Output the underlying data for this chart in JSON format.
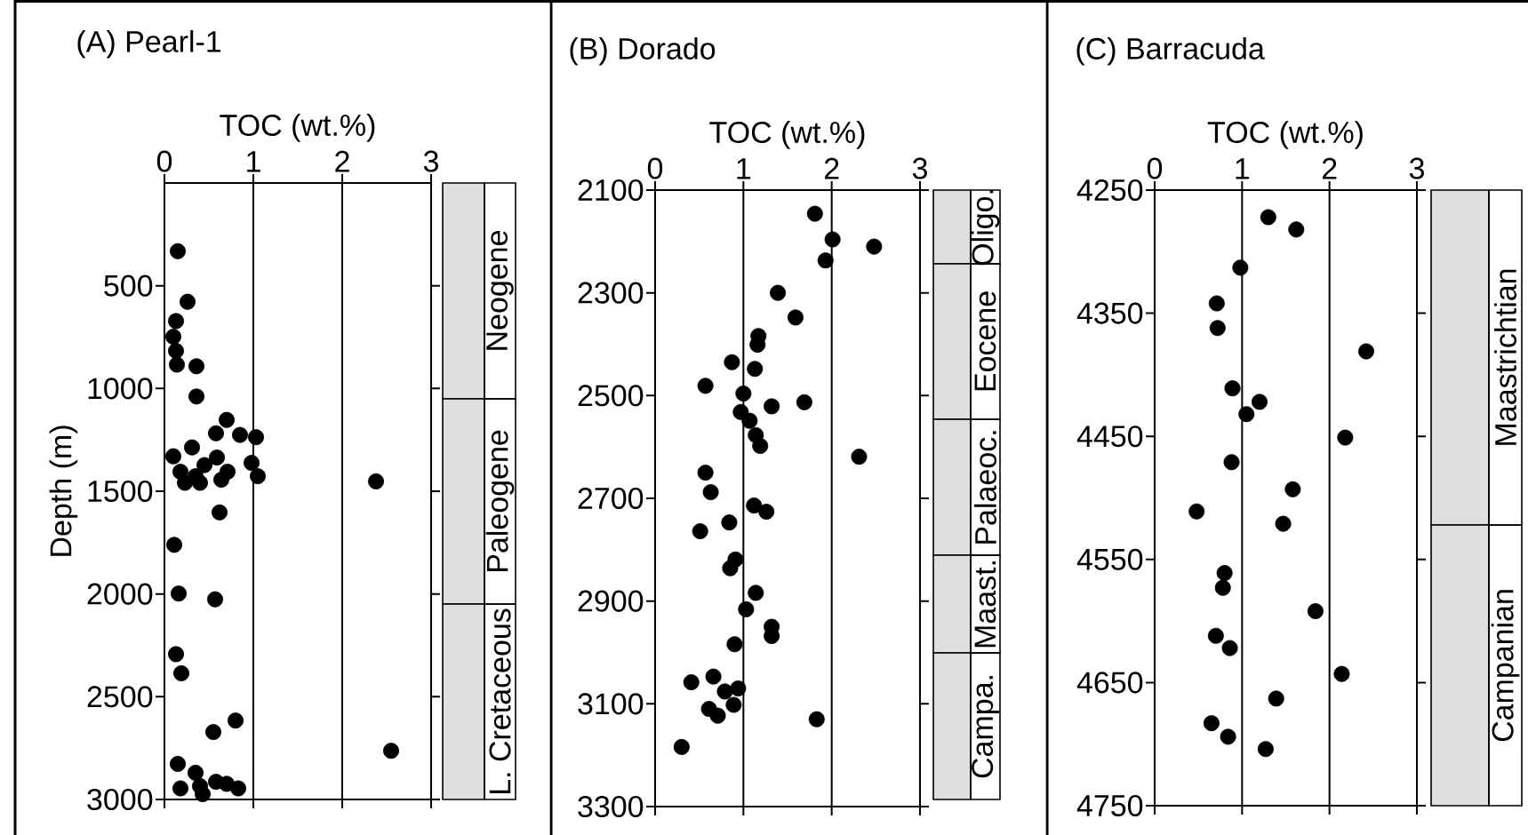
{
  "chart_data": [
    {
      "type": "scatter",
      "title": "(A) Pearl-1",
      "xlabel": "TOC (wt.%)",
      "ylabel": "Depth (m)",
      "xlim": [
        0,
        3
      ],
      "xticks": [
        0,
        1,
        2,
        3
      ],
      "ylim": [
        3000,
        0
      ],
      "yticks": [
        500,
        1000,
        1500,
        2000,
        2500,
        3000
      ],
      "grid": "x",
      "series": [
        {
          "color": "#000000",
          "x": [
            0.15,
            0.26,
            0.13,
            0.1,
            0.13,
            0.14,
            0.36,
            0.36,
            0.7,
            0.58,
            0.85,
            1.03,
            0.31,
            0.1,
            0.59,
            0.98,
            0.45,
            0.18,
            0.35,
            0.71,
            1.05,
            0.23,
            0.4,
            0.64,
            2.38,
            0.62,
            0.11,
            0.16,
            0.57,
            0.13,
            0.19,
            0.8,
            0.55,
            2.55,
            0.15,
            0.35,
            0.18,
            0.4,
            0.58,
            0.7,
            0.83,
            0.43
          ],
          "values": [
            332,
            578,
            672,
            748,
            817,
            884,
            892,
            1039,
            1153,
            1218,
            1226,
            1237,
            1287,
            1330,
            1336,
            1362,
            1373,
            1405,
            1427,
            1405,
            1427,
            1459,
            1459,
            1444,
            1452,
            1603,
            1761,
            1998,
            2026,
            2293,
            2386,
            2616,
            2672,
            2763,
            2827,
            2870,
            2946,
            2935,
            2914,
            2924,
            2946,
            2974
          ]
        }
      ],
      "annotations": [
        "Neogene",
        "Paleogene",
        "L. Cretaceous"
      ]
    },
    {
      "type": "scatter",
      "title": "(B) Dorado",
      "xlabel": "TOC (wt.%)",
      "xlim": [
        0,
        3
      ],
      "xticks": [
        0,
        1,
        2,
        3
      ],
      "ylim": [
        3300,
        2100
      ],
      "yticks": [
        2100,
        2300,
        2500,
        2700,
        2900,
        3100,
        3300
      ],
      "grid": "x",
      "series": [
        {
          "color": "#000000",
          "x": [
            1.81,
            2.01,
            2.48,
            1.93,
            1.39,
            1.59,
            1.17,
            1.16,
            0.87,
            1.13,
            0.57,
            1.0,
            1.32,
            1.69,
            0.97,
            1.07,
            1.14,
            1.19,
            2.31,
            0.57,
            0.63,
            1.12,
            1.26,
            0.84,
            0.51,
            0.91,
            0.85,
            1.14,
            1.03,
            1.32,
            1.32,
            0.9,
            0.66,
            0.41,
            0.94,
            0.79,
            0.89,
            0.61,
            0.71,
            1.83,
            0.3
          ],
          "values": [
            2146,
            2196,
            2210,
            2237,
            2300,
            2348,
            2384,
            2401,
            2435,
            2448,
            2481,
            2496,
            2521,
            2513,
            2532,
            2549,
            2577,
            2598,
            2619,
            2650,
            2688,
            2714,
            2726,
            2747,
            2764,
            2819,
            2836,
            2884,
            2916,
            2950,
            2968,
            2984,
            3047,
            3058,
            3070,
            3076,
            3102,
            3110,
            3123,
            3130,
            3184
          ]
        }
      ],
      "annotations": [
        "Oligo.",
        "Eocene",
        "Palaeoc.",
        "Maast.",
        "Campa."
      ]
    },
    {
      "type": "scatter",
      "title": "(C) Barracuda",
      "xlabel": "TOC (wt.%)",
      "xlim": [
        0,
        3
      ],
      "xticks": [
        0,
        1,
        2,
        3
      ],
      "ylim": [
        4750,
        4250
      ],
      "yticks": [
        4250,
        4350,
        4450,
        4550,
        4650,
        4750
      ],
      "grid": "x",
      "series": [
        {
          "color": "#000000",
          "x": [
            1.3,
            1.62,
            0.98,
            0.71,
            0.72,
            2.42,
            0.89,
            1.2,
            1.05,
            2.18,
            0.88,
            1.58,
            0.48,
            1.47,
            0.8,
            0.78,
            1.84,
            0.7,
            0.86,
            2.14,
            1.39,
            0.65,
            0.84,
            1.27
          ],
          "values": [
            4272,
            4282,
            4313,
            4342,
            4362,
            4381,
            4411,
            4422,
            4432,
            4451,
            4471,
            4493,
            4511,
            4521,
            4561,
            4573,
            4592,
            4612,
            4622,
            4643,
            4663,
            4683,
            4694,
            4704
          ]
        }
      ],
      "annotations": [
        "Maastrichtian",
        "Campanian"
      ]
    }
  ]
}
